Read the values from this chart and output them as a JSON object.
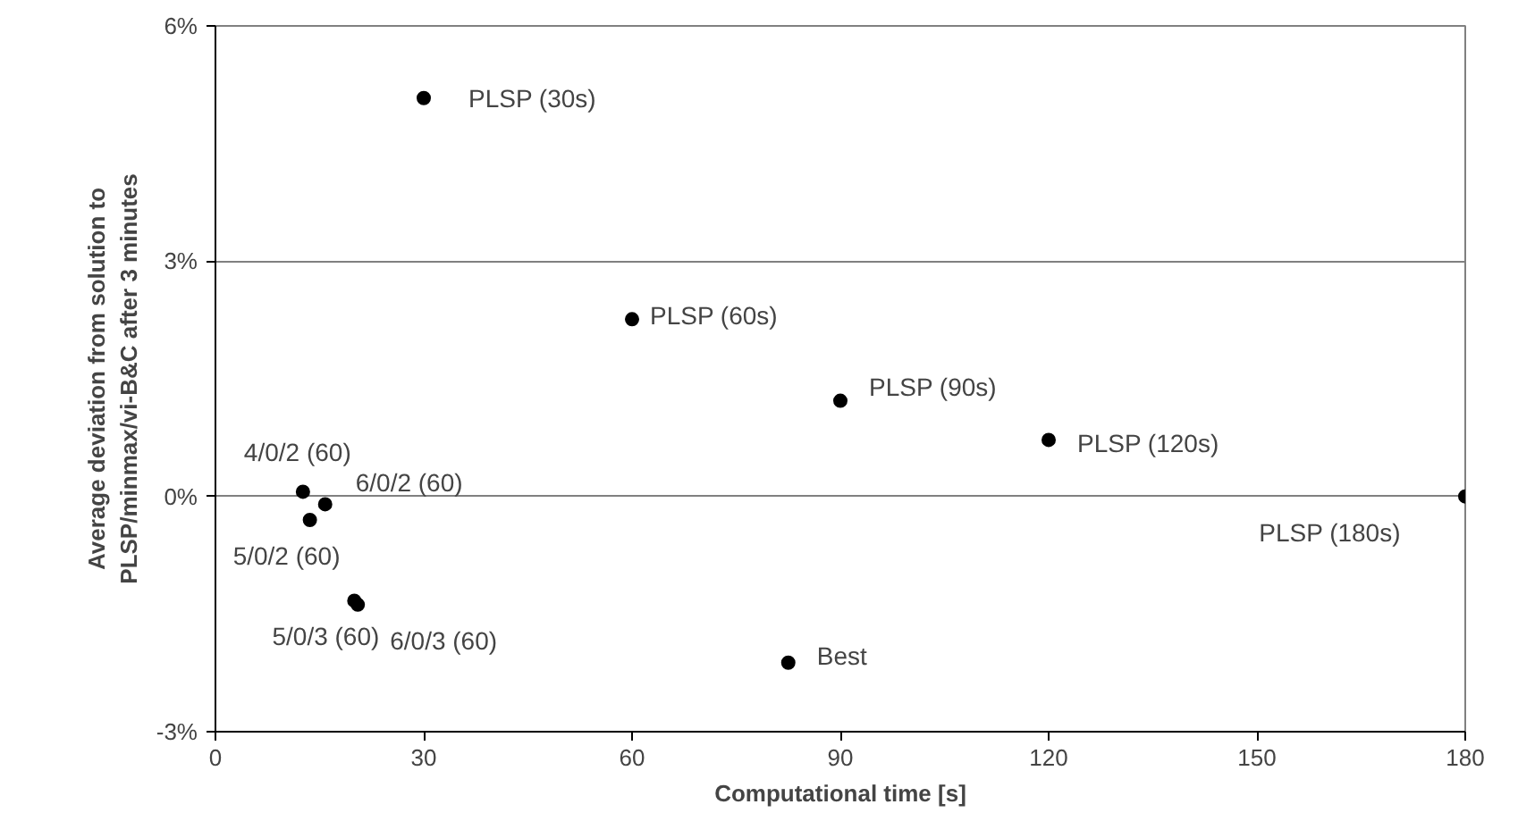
{
  "chart_data": {
    "type": "scatter",
    "xlabel": "Computational time [s]",
    "ylabel": "Average deviation from solution to\nPLSP/minmax/vi-B&C after 3 minutes",
    "x": [
      30,
      60,
      90,
      120,
      180,
      12.6,
      15.8,
      13.6,
      20.0,
      20.5,
      82.5
    ],
    "series": [
      {
        "color": "#000000",
        "values": [
          5.08,
          2.26,
          1.22,
          0.72,
          0.0,
          0.06,
          -0.1,
          -0.3,
          -1.33,
          -1.38,
          -2.12
        ]
      }
    ],
    "xlim": [
      0,
      180
    ],
    "xticks": [
      0,
      30,
      60,
      90,
      120,
      150,
      180
    ],
    "ylim": [
      -3,
      6
    ],
    "yticks": [
      {
        "value": -3,
        "label": "-3%"
      },
      {
        "value": 0,
        "label": "0%"
      },
      {
        "value": 3,
        "label": "3%"
      },
      {
        "value": 6,
        "label": "6%"
      }
    ],
    "grid": "y",
    "marker": "circle",
    "annotations": [
      {
        "text": "PLSP (30s)",
        "x": 30,
        "y": 5.08
      },
      {
        "text": "PLSP (60s)",
        "x": 60,
        "y": 2.26
      },
      {
        "text": "PLSP (90s)",
        "x": 90,
        "y": 1.22
      },
      {
        "text": "PLSP (120s)",
        "x": 120,
        "y": 0.72
      },
      {
        "text": "PLSP (180s)",
        "x": 180,
        "y": 0.0
      },
      {
        "text": "4/0/2 (60)",
        "x": 12.6,
        "y": 0.06
      },
      {
        "text": "6/0/2 (60)",
        "x": 15.8,
        "y": -0.1
      },
      {
        "text": "5/0/2 (60)",
        "x": 13.6,
        "y": -0.3
      },
      {
        "text": "5/0/3 (60)",
        "x": 20.0,
        "y": -1.33
      },
      {
        "text": "6/0/3 (60)",
        "x": 20.5,
        "y": -1.38
      },
      {
        "text": "Best",
        "x": 82.5,
        "y": -2.12
      }
    ]
  }
}
